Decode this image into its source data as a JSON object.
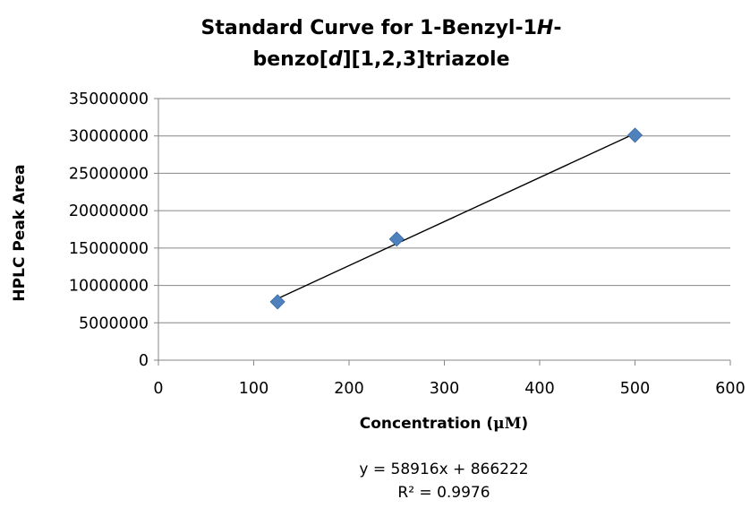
{
  "chart_data": {
    "type": "scatter",
    "title_line1": "Standard Curve for 1-Benzyl-1",
    "title_line1_italic": "H",
    "title_line1_tail": "-",
    "title_line2_pre": "benzo[",
    "title_line2_italic": "d",
    "title_line2_post": "][1,2,3]triazole",
    "xlabel_text": "Concentration (",
    "xlabel_unit": "μM",
    "xlabel_close": ")",
    "ylabel": "HPLC Peak Area",
    "xlim": [
      0,
      600
    ],
    "ylim": [
      0,
      35000000
    ],
    "xticks": [
      0,
      100,
      200,
      300,
      400,
      500,
      600
    ],
    "yticks": [
      0,
      5000000,
      10000000,
      15000000,
      20000000,
      25000000,
      30000000,
      35000000
    ],
    "grid": "horizontal",
    "series": [
      {
        "x": [
          125,
          250,
          500
        ],
        "y": [
          7800000,
          16200000,
          30100000
        ],
        "marker": "diamond",
        "color": "#4F81BD"
      }
    ],
    "trendline": {
      "slope": 58916,
      "intercept": 866222,
      "x_range": [
        125,
        500
      ],
      "color": "#000000"
    },
    "annotations": {
      "equation": "y = 58916x + 866222",
      "r2": "R² = 0.9976"
    }
  }
}
